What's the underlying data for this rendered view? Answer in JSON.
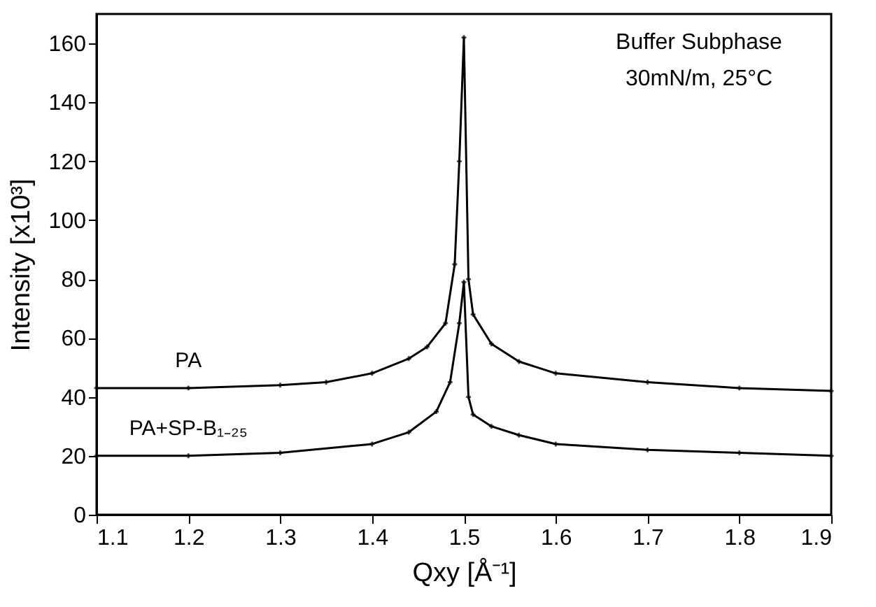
{
  "chart_data": {
    "type": "line",
    "xlabel": "Qxy [Å⁻¹]",
    "ylabel": "Intensity [x10³]",
    "annotations": [
      "Buffer Subphase",
      "30mN/m, 25°C"
    ],
    "xlim": [
      1.1,
      1.9
    ],
    "xticks": [
      1.1,
      1.2,
      1.3,
      1.4,
      1.5,
      1.6,
      1.7,
      1.8,
      1.9
    ],
    "ylim": [
      0,
      170
    ],
    "yticks": [
      0,
      20,
      40,
      60,
      80,
      100,
      120,
      140,
      160
    ],
    "grid": false,
    "legend": false,
    "marker": "cross",
    "line_style": "solid",
    "series": [
      {
        "name": "PA",
        "color": "#000000",
        "x": [
          1.1,
          1.2,
          1.3,
          1.35,
          1.4,
          1.44,
          1.46,
          1.48,
          1.49,
          1.495,
          1.5,
          1.505,
          1.51,
          1.53,
          1.56,
          1.6,
          1.7,
          1.8,
          1.9
        ],
        "values": [
          43,
          43,
          44,
          45,
          48,
          53,
          57,
          65,
          85,
          120,
          162,
          80,
          68,
          58,
          52,
          48,
          45,
          43,
          42
        ]
      },
      {
        "name": "PA+SP-B₁₋₂₅",
        "color": "#000000",
        "x": [
          1.1,
          1.2,
          1.3,
          1.4,
          1.44,
          1.47,
          1.485,
          1.495,
          1.5,
          1.505,
          1.51,
          1.53,
          1.56,
          1.6,
          1.7,
          1.8,
          1.9
        ],
        "values": [
          20,
          20,
          21,
          24,
          28,
          35,
          45,
          65,
          79,
          40,
          34,
          30,
          27,
          24,
          22,
          21,
          20
        ]
      }
    ]
  }
}
